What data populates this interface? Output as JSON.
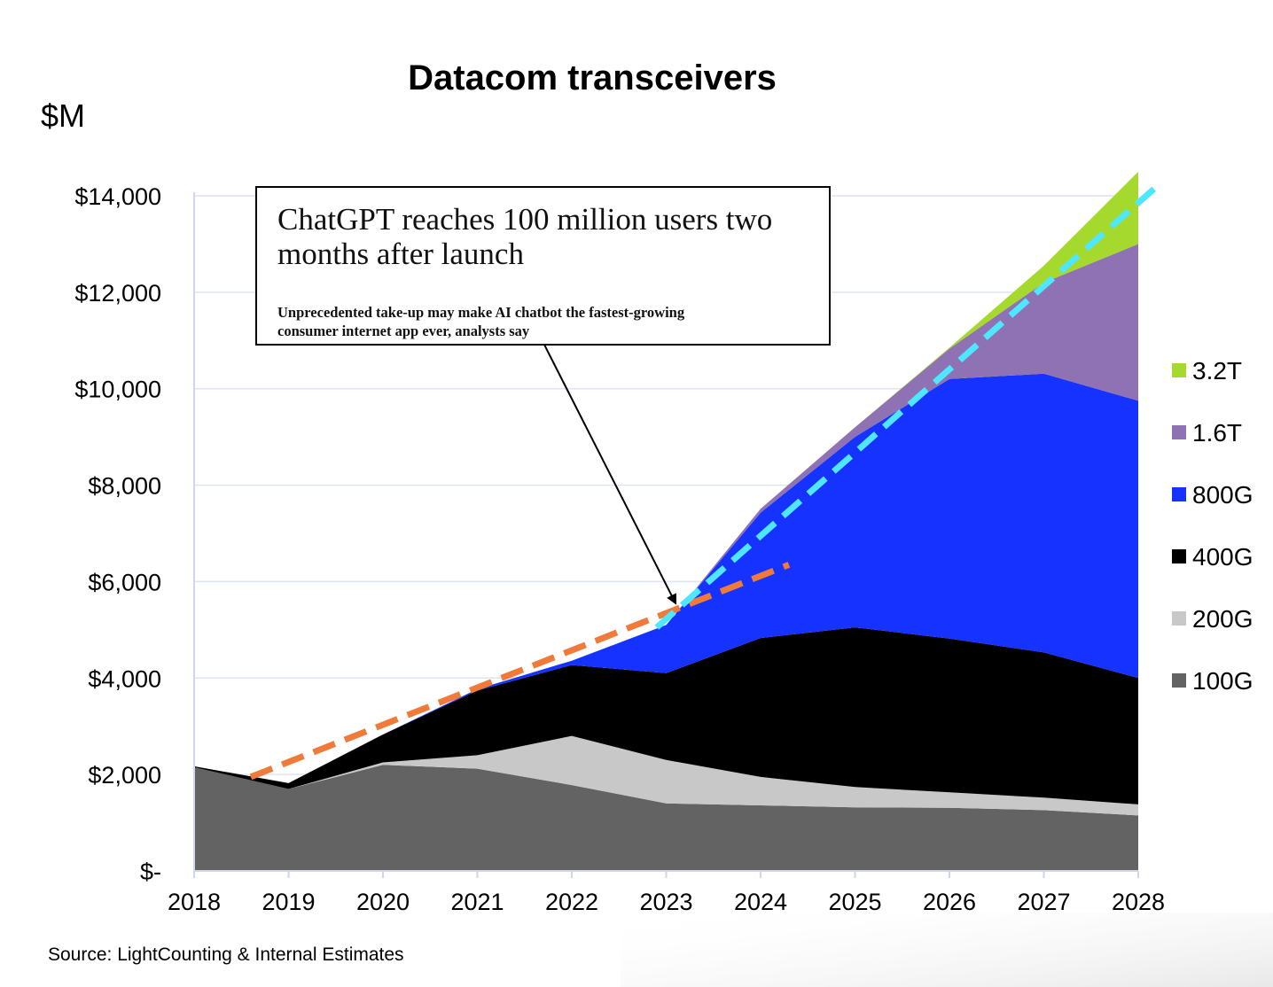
{
  "chart_data": {
    "type": "area",
    "title": "Datacom transceivers",
    "ylabel": "$M",
    "ylim": [
      0,
      14000
    ],
    "yticks": [
      {
        "value": 0,
        "label": "$-"
      },
      {
        "value": 2000,
        "label": "$2,000"
      },
      {
        "value": 4000,
        "label": "$4,000"
      },
      {
        "value": 6000,
        "label": "$6,000"
      },
      {
        "value": 8000,
        "label": "$8,000"
      },
      {
        "value": 10000,
        "label": "$10,000"
      },
      {
        "value": 12000,
        "label": "$12,000"
      },
      {
        "value": 14000,
        "label": "$14,000"
      }
    ],
    "categories": [
      "2018",
      "2019",
      "2020",
      "2021",
      "2022",
      "2023",
      "2024",
      "2025",
      "2026",
      "2027",
      "2028"
    ],
    "stacked": true,
    "grid": true,
    "legend_position": "right",
    "series": [
      {
        "name": "100G",
        "color": "#636363",
        "values": [
          2150,
          1700,
          2200,
          2120,
          1780,
          1400,
          1360,
          1320,
          1310,
          1260,
          1150
        ]
      },
      {
        "name": "200G",
        "color": "#c8c8c8",
        "values": [
          0,
          0,
          50,
          280,
          1020,
          900,
          590,
          420,
          320,
          260,
          230
        ]
      },
      {
        "name": "400G",
        "color": "#000000",
        "values": [
          20,
          120,
          580,
          1340,
          1470,
          1800,
          2880,
          3310,
          3190,
          3010,
          2620
        ]
      },
      {
        "name": "800G",
        "color": "#1632ff",
        "values": [
          0,
          0,
          0,
          30,
          90,
          1000,
          2600,
          3950,
          5380,
          5780,
          5750
        ]
      },
      {
        "name": "1.6T",
        "color": "#8e72b4",
        "values": [
          0,
          0,
          0,
          0,
          0,
          0,
          80,
          200,
          630,
          1890,
          3250
        ]
      },
      {
        "name": "3.2T",
        "color": "#a6d92e",
        "values": [
          0,
          0,
          0,
          0,
          0,
          0,
          0,
          0,
          20,
          350,
          1500
        ]
      }
    ],
    "trend_lines": [
      {
        "color": "#f07a3a",
        "style": "dashed",
        "points": [
          [
            2018.6,
            1950
          ],
          [
            2024.3,
            6350
          ]
        ]
      },
      {
        "color": "#4fe6ff",
        "style": "dashed",
        "points": [
          [
            2022.9,
            5050
          ],
          [
            2028.2,
            14200
          ]
        ]
      }
    ],
    "annotation": {
      "headline": "ChatGPT reaches 100 million users two months after launch",
      "headline_lines": [
        "ChatGPT reaches 100 million users two",
        "months after launch"
      ],
      "subline": "Unprecedented take-up may make AI chatbot the fastest-growing consumer internet app ever, analysts say",
      "sub_lines": [
        "Unprecedented take-up may make AI chatbot the fastest-growing",
        "consumer internet app ever, analysts say"
      ],
      "points_to": [
        2023.1,
        5550
      ]
    },
    "legend_order": [
      "3.2T",
      "1.6T",
      "800G",
      "400G",
      "200G",
      "100G"
    ],
    "source": "Source: LightCounting & Internal Estimates"
  }
}
